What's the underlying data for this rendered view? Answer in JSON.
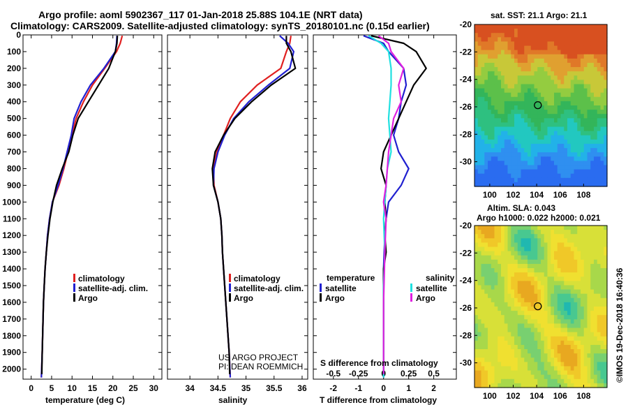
{
  "header": {
    "line1": "Argo profile: aoml 5902367_117 01-Jan-2018 25.88S 104.1E (NRT data)",
    "line2": "Climatology: CARS2009. Satellite-adjusted climatology: synTS_20180101.nc (0.15d earlier)"
  },
  "colors": {
    "climatology": "#e02020",
    "satellite": "#2020d0",
    "argo": "#000000",
    "sat_salinity": "#20e0e0",
    "argo_salinity": "#e020e0"
  },
  "legend": {
    "climatology": "climatology",
    "satellite_adj": "satellite-adj. clim.",
    "argo": "Argo",
    "temperature_hdr": "temperature",
    "salinity_hdr": "salinity",
    "satellite": "satellite"
  },
  "notes": {
    "project": "US ARGO PROJECT",
    "pi": "PI: DEAN ROEMMICH",
    "s_diff": "S difference from climatology",
    "stamp": "©IMOS 19-Dec-2018 16:40:36"
  },
  "maps": {
    "sst_title": "sat. SST: 21.1 Argo: 21.1",
    "sla_title1": "Altim. SLA: 0.043",
    "sla_title2": "Argo h1000: 0.022 h2000: 0.021",
    "lat_ticks": [
      "-20",
      "-22",
      "-24",
      "-26",
      "-28",
      "-30"
    ],
    "lon_ticks": [
      "100",
      "102",
      "104",
      "106",
      "108"
    ],
    "lat_values": [
      -20,
      -22,
      -24,
      -26,
      -28,
      -30
    ],
    "lon_values": [
      100,
      102,
      104,
      106,
      108
    ],
    "float_lat": -25.88,
    "float_lon": 104.1,
    "lat_range": [
      -31.8,
      -20
    ],
    "lon_range": [
      98.7,
      110
    ]
  },
  "chart_data": [
    {
      "type": "line",
      "panel": "temperature",
      "xlabel": "temperature (deg C)",
      "ylabel": "",
      "xlim": [
        -2,
        32
      ],
      "ylim": [
        2060,
        0
      ],
      "xticks": [
        0,
        5,
        10,
        15,
        20,
        25,
        30
      ],
      "xtick_labels": [
        "0",
        "5",
        "10",
        "15",
        "20",
        "25",
        "30"
      ],
      "yticks": [
        0,
        100,
        200,
        300,
        400,
        500,
        600,
        700,
        800,
        900,
        1000,
        1100,
        1200,
        1300,
        1400,
        1500,
        1600,
        1700,
        1800,
        1900,
        2000
      ],
      "ytick_labels": [
        "0",
        "100",
        "200",
        "300",
        "400",
        "500",
        "600",
        "700",
        "800",
        "900",
        "1000",
        "1100",
        "1200",
        "1300",
        "1400",
        "1500",
        "1600",
        "1700",
        "1800",
        "1900",
        "2000"
      ],
      "series": [
        {
          "name": "climatology",
          "color_key": "climatology",
          "x": [
            22.3,
            21.8,
            20.9,
            18.0,
            15.0,
            12.8,
            11.0,
            10.0,
            9.0,
            8.0,
            6.8,
            5.2,
            4.5,
            4.0,
            3.7,
            3.4,
            3.2,
            3.0,
            2.9,
            2.8,
            2.7,
            2.5
          ],
          "depth": [
            5,
            50,
            100,
            200,
            300,
            400,
            500,
            600,
            700,
            800,
            900,
            1000,
            1100,
            1200,
            1300,
            1400,
            1500,
            1600,
            1700,
            1800,
            1900,
            2050
          ]
        },
        {
          "name": "satellite-adj. clim.",
          "color_key": "satellite",
          "x": [
            21.0,
            20.9,
            20.6,
            17.8,
            14.5,
            12.2,
            10.5,
            9.8,
            8.8,
            7.8,
            6.6,
            5.2,
            4.5,
            4.0,
            3.7,
            3.4,
            3.2,
            3.0,
            2.9,
            2.8,
            2.7,
            2.5
          ],
          "depth": [
            5,
            50,
            100,
            200,
            300,
            400,
            500,
            600,
            700,
            800,
            900,
            1000,
            1100,
            1200,
            1300,
            1400,
            1500,
            1600,
            1700,
            1800,
            1900,
            2050
          ]
        },
        {
          "name": "Argo",
          "color_key": "argo",
          "x": [
            21.1,
            21.0,
            20.6,
            19.0,
            16.5,
            14.0,
            11.5,
            10.2,
            9.2,
            7.6,
            6.2,
            5.3,
            4.6,
            4.1,
            3.7,
            3.4,
            3.2,
            3.0,
            2.9,
            2.8,
            2.7,
            2.6
          ],
          "depth": [
            5,
            50,
            100,
            200,
            300,
            400,
            500,
            600,
            700,
            800,
            900,
            1000,
            1100,
            1200,
            1300,
            1400,
            1500,
            1600,
            1700,
            1800,
            1900,
            2030
          ]
        }
      ]
    },
    {
      "type": "line",
      "panel": "salinity",
      "xlabel": "salinity",
      "xlim": [
        33.6,
        36.1
      ],
      "ylim": [
        2060,
        0
      ],
      "xticks": [
        34,
        34.5,
        35,
        35.5,
        36
      ],
      "xtick_labels": [
        "34",
        "34.5",
        "35",
        "35.5",
        "36"
      ],
      "series": [
        {
          "name": "climatology",
          "color_key": "climatology",
          "x": [
            35.8,
            35.78,
            35.72,
            35.62,
            35.2,
            34.9,
            34.72,
            34.6,
            34.48,
            34.42,
            34.43,
            34.5,
            34.55,
            34.57,
            34.58,
            34.6,
            34.62,
            34.64,
            34.66,
            34.68,
            34.7,
            34.72
          ],
          "depth": [
            5,
            50,
            100,
            200,
            300,
            400,
            500,
            600,
            700,
            800,
            900,
            1000,
            1100,
            1200,
            1300,
            1400,
            1500,
            1600,
            1700,
            1800,
            1900,
            2050
          ]
        },
        {
          "name": "satellite-adj. clim.",
          "color_key": "satellite",
          "x": [
            35.6,
            35.75,
            35.85,
            35.78,
            35.4,
            35.05,
            34.78,
            34.62,
            34.5,
            34.43,
            34.42,
            34.5,
            34.55,
            34.57,
            34.58,
            34.6,
            34.62,
            34.64,
            34.66,
            34.68,
            34.7,
            34.72
          ],
          "depth": [
            5,
            50,
            100,
            200,
            300,
            400,
            500,
            600,
            700,
            800,
            900,
            1000,
            1100,
            1200,
            1300,
            1400,
            1500,
            1600,
            1700,
            1800,
            1900,
            2050
          ]
        },
        {
          "name": "Argo",
          "color_key": "argo",
          "x": [
            35.72,
            35.72,
            35.8,
            35.88,
            35.45,
            35.1,
            34.8,
            34.6,
            34.45,
            34.4,
            34.42,
            34.5,
            34.55,
            34.57,
            34.58,
            34.6,
            34.62,
            34.64,
            34.66,
            34.68,
            34.7,
            34.71
          ],
          "depth": [
            5,
            50,
            100,
            200,
            300,
            400,
            500,
            600,
            700,
            800,
            900,
            1000,
            1100,
            1200,
            1300,
            1400,
            1500,
            1600,
            1700,
            1800,
            1900,
            2030
          ]
        }
      ]
    },
    {
      "type": "line",
      "panel": "difference",
      "xlabel": "T difference from climatology",
      "xlim": [
        -2.8,
        2.9
      ],
      "ylim": [
        2060,
        0
      ],
      "xticks": [
        -2,
        -1,
        0,
        1,
        2
      ],
      "xtick_labels": [
        "-2",
        "-1",
        "0",
        "1",
        "2"
      ],
      "s_xticks": [
        -2,
        -1,
        0,
        1,
        2
      ],
      "s_xtick_labels": [
        "-0.5",
        "-0.25",
        "0",
        "0.25",
        "0.5"
      ],
      "series": [
        {
          "name": "T satellite",
          "color_key": "satellite",
          "x": [
            -0.8,
            0.0,
            0.2,
            0.8,
            0.9,
            0.7,
            0.6,
            0.4,
            0.5,
            0.6,
            1.0,
            0.7,
            0.2,
            0.1,
            0.05,
            0.0,
            0.0,
            0.0,
            0.0,
            0.0,
            0.0
          ],
          "depth": [
            5,
            50,
            100,
            200,
            300,
            400,
            500,
            600,
            650,
            700,
            800,
            900,
            1000,
            1100,
            1200,
            1400,
            1600,
            1800,
            1900,
            2000,
            2050
          ]
        },
        {
          "name": "T Argo",
          "color_key": "argo",
          "x": [
            -0.5,
            0.8,
            1.3,
            1.7,
            1.2,
            0.9,
            0.6,
            0.3,
            0.0,
            -0.1,
            0.1,
            0.05,
            0.1,
            0.05,
            0.1,
            0.0,
            0.0,
            0.0,
            0.0,
            0.0
          ],
          "depth": [
            5,
            50,
            100,
            200,
            300,
            400,
            500,
            600,
            700,
            800,
            900,
            1000,
            1100,
            1200,
            1300,
            1400,
            1600,
            1800,
            1900,
            2030
          ]
        },
        {
          "name": "S satellite",
          "color_key": "sat_salinity",
          "x": [
            -0.6,
            -0.1,
            0.2,
            0.3,
            0.3,
            0.25,
            0.2,
            0.25,
            0.3,
            0.15,
            0.1,
            0.05,
            0.0,
            0.05,
            0.0,
            0.0,
            0.0
          ],
          "depth": [
            5,
            50,
            100,
            200,
            300,
            400,
            500,
            600,
            700,
            800,
            900,
            1000,
            1100,
            1300,
            1500,
            1800,
            2050
          ]
        },
        {
          "name": "S Argo",
          "color_key": "argo_salinity",
          "x": [
            -0.2,
            0.2,
            0.3,
            0.8,
            0.6,
            0.7,
            0.4,
            0.3,
            0.2,
            0.1,
            0.0,
            0.1,
            0.05,
            0.0,
            0.0
          ],
          "depth": [
            5,
            50,
            100,
            200,
            300,
            400,
            500,
            600,
            700,
            900,
            1000,
            1100,
            1300,
            1600,
            2030
          ]
        }
      ]
    }
  ]
}
